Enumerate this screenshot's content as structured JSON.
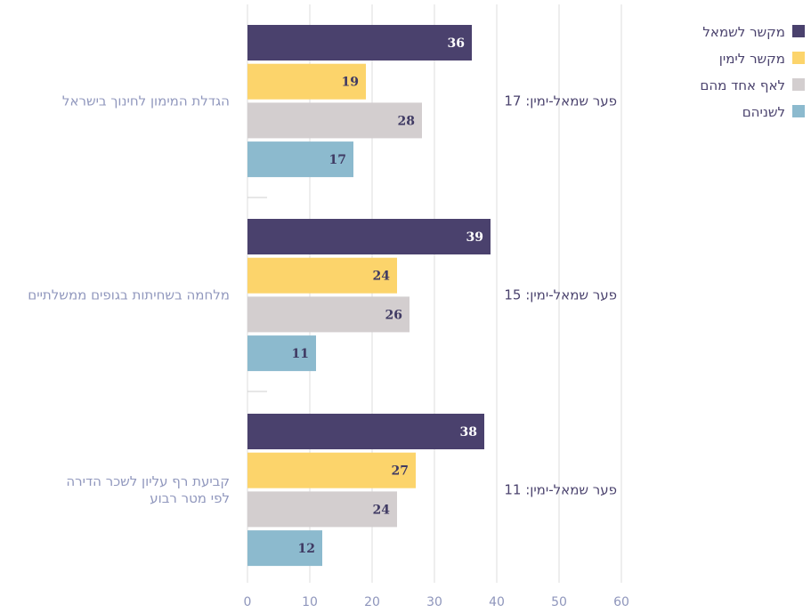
{
  "chart_data": {
    "type": "bar",
    "orientation": "horizontal",
    "categories": [
      [
        "הגדלת המימון לחינוך בישראל"
      ],
      [
        "מלחמה בשחיתות בגופים ממשלתיים"
      ],
      [
        "קביעת רף עליון לשכר הדירה",
        "לפי מטר רבוע"
      ]
    ],
    "gap_labels": [
      "פער שמאל-ימין: 17",
      "פער שמאל-ימין: 15",
      "פער שמאל-ימין: 11"
    ],
    "series": [
      {
        "name": "מקשר לשמאל",
        "color": "#4a416d",
        "label_color": "#ffffff",
        "values": [
          36,
          39,
          38
        ]
      },
      {
        "name": "מקשר לימין",
        "color": "#fcd46b",
        "label_color": "#3f3a63",
        "values": [
          19,
          24,
          27
        ]
      },
      {
        "name": "לאף אחד מהם",
        "color": "#d3cecf",
        "label_color": "#3f3a63",
        "values": [
          28,
          26,
          24
        ]
      },
      {
        "name": "לשניהם",
        "color": "#8cbace",
        "label_color": "#3f3a63",
        "values": [
          17,
          11,
          12
        ]
      }
    ],
    "xlim": [
      0,
      60
    ],
    "xticks": [
      "0",
      "10",
      "20",
      "30",
      "40",
      "50",
      "60"
    ],
    "grid": true,
    "legend_position": "top-right"
  }
}
